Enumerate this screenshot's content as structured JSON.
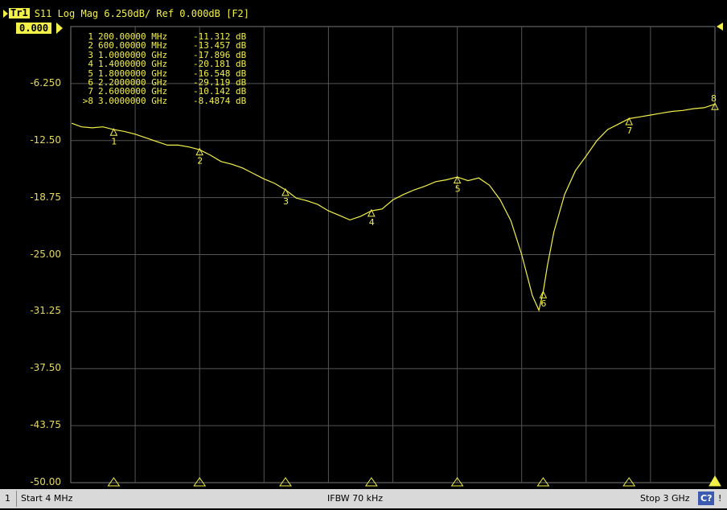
{
  "header": {
    "trace_label": "Tr1",
    "trace_info": "S11 Log Mag 6.250dB/ Ref 0.000dB [F2]"
  },
  "reference_level_text": "0.000",
  "y_axis": {
    "ticks": [
      "0.000",
      "-6.250",
      "-12.50",
      "-18.75",
      "-25.00",
      "-31.25",
      "-37.50",
      "-43.75",
      "-50.00"
    ]
  },
  "markers": [
    {
      "id": "1",
      "freq": "200.00000 MHz",
      "value": "-11.312 dB"
    },
    {
      "id": "2",
      "freq": "600.00000 MHz",
      "value": "-13.457 dB"
    },
    {
      "id": "3",
      "freq": "1.0000000 GHz",
      "value": "-17.896 dB"
    },
    {
      "id": "4",
      "freq": "1.4000000 GHz",
      "value": "-20.181 dB"
    },
    {
      "id": "5",
      "freq": "1.8000000 GHz",
      "value": "-16.548 dB"
    },
    {
      "id": "6",
      "freq": "2.2000000 GHz",
      "value": "-29.119 dB"
    },
    {
      "id": "7",
      "freq": "2.6000000 GHz",
      "value": "-10.142 dB"
    },
    {
      "id": ">8",
      "freq": "3.0000000 GHz",
      "value": "-8.4874 dB"
    }
  ],
  "status_bar": {
    "channel": "1",
    "start": "Start 4 MHz",
    "ifbw": "IFBW 70 kHz",
    "stop": "Stop 3 GHz",
    "cal_badge": "C?",
    "warning": "!"
  },
  "trace_color": "#f3f04a",
  "chart_data": {
    "type": "line",
    "xlim": [
      0.004,
      3.0
    ],
    "ylim": [
      -50.0,
      0.0
    ],
    "y_ticks": [
      0.0,
      -6.25,
      -12.5,
      -18.75,
      -25.0,
      -31.25,
      -37.5,
      -43.75,
      -50.0
    ],
    "series": [
      {
        "x": [
          0.004,
          0.05,
          0.1,
          0.15,
          0.2,
          0.25,
          0.3,
          0.35,
          0.4,
          0.45,
          0.5,
          0.55,
          0.6,
          0.65,
          0.7,
          0.75,
          0.8,
          0.85,
          0.9,
          0.95,
          1.0,
          1.05,
          1.1,
          1.15,
          1.2,
          1.25,
          1.3,
          1.35,
          1.4,
          1.45,
          1.5,
          1.55,
          1.6,
          1.65,
          1.7,
          1.75,
          1.8,
          1.85,
          1.9,
          1.95,
          2.0,
          2.05,
          2.1,
          2.15,
          2.18,
          2.2,
          2.22,
          2.25,
          2.3,
          2.35,
          2.4,
          2.45,
          2.5,
          2.55,
          2.6,
          2.65,
          2.7,
          2.75,
          2.8,
          2.85,
          2.9,
          2.95,
          3.0
        ],
        "y": [
          -10.6,
          -11.0,
          -11.1,
          -11.0,
          -11.3,
          -11.5,
          -11.8,
          -12.2,
          -12.6,
          -13.0,
          -13.0,
          -13.2,
          -13.5,
          -14.1,
          -14.8,
          -15.1,
          -15.5,
          -16.1,
          -16.7,
          -17.2,
          -17.9,
          -18.8,
          -19.1,
          -19.5,
          -20.2,
          -20.7,
          -21.2,
          -20.8,
          -20.2,
          -20.0,
          -19.0,
          -18.4,
          -17.9,
          -17.5,
          -17.0,
          -16.8,
          -16.5,
          -16.9,
          -16.6,
          -17.4,
          -19.0,
          -21.3,
          -25.0,
          -29.5,
          -31.1,
          -29.1,
          -26.2,
          -22.5,
          -18.4,
          -15.8,
          -14.2,
          -12.5,
          -11.3,
          -10.7,
          -10.1,
          -9.9,
          -9.7,
          -9.5,
          -9.3,
          -9.2,
          -9.0,
          -8.9,
          -8.5
        ]
      }
    ],
    "markers": [
      {
        "label": "1",
        "x": 0.2,
        "y": -11.312
      },
      {
        "label": "2",
        "x": 0.6,
        "y": -13.457
      },
      {
        "label": "3",
        "x": 1.0,
        "y": -17.896
      },
      {
        "label": "4",
        "x": 1.4,
        "y": -20.181
      },
      {
        "label": "5",
        "x": 1.8,
        "y": -16.548
      },
      {
        "label": "6",
        "x": 2.2,
        "y": -29.119
      },
      {
        "label": "7",
        "x": 2.6,
        "y": -10.142
      },
      {
        "label": "8",
        "x": 3.0,
        "y": -8.4874
      }
    ]
  }
}
